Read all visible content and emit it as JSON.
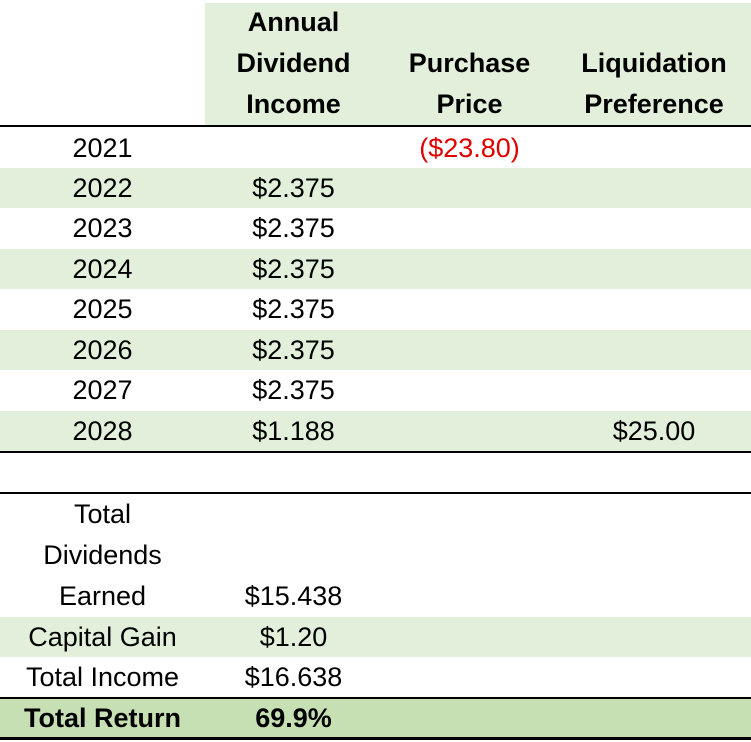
{
  "headers": {
    "dividend": [
      "Annual",
      "Dividend",
      "Income"
    ],
    "purchase": [
      "Purchase",
      "Price"
    ],
    "liquidation": [
      "Liquidation",
      "Preference"
    ]
  },
  "rows": [
    {
      "year": "2021",
      "dividend": "",
      "purchase": "($23.80)",
      "liquidation": ""
    },
    {
      "year": "2022",
      "dividend": "$2.375",
      "purchase": "",
      "liquidation": ""
    },
    {
      "year": "2023",
      "dividend": "$2.375",
      "purchase": "",
      "liquidation": ""
    },
    {
      "year": "2024",
      "dividend": "$2.375",
      "purchase": "",
      "liquidation": ""
    },
    {
      "year": "2025",
      "dividend": "$2.375",
      "purchase": "",
      "liquidation": ""
    },
    {
      "year": "2026",
      "dividend": "$2.375",
      "purchase": "",
      "liquidation": ""
    },
    {
      "year": "2027",
      "dividend": "$2.375",
      "purchase": "",
      "liquidation": ""
    },
    {
      "year": "2028",
      "dividend": "$1.188",
      "purchase": "",
      "liquidation": "$25.00"
    }
  ],
  "totals": {
    "dividends_label": [
      "Total",
      "Dividends",
      "Earned"
    ],
    "dividends_value": "$15.438",
    "capital_gain_label": "Capital Gain",
    "capital_gain_value": "$1.20",
    "total_income_label": "Total Income",
    "total_income_value": "$16.638",
    "total_return_label": "Total Return",
    "total_return_value": "69.9%"
  },
  "colors": {
    "band": "#e2efda",
    "total_band": "#c6e0b4",
    "negative": "#e00000"
  }
}
